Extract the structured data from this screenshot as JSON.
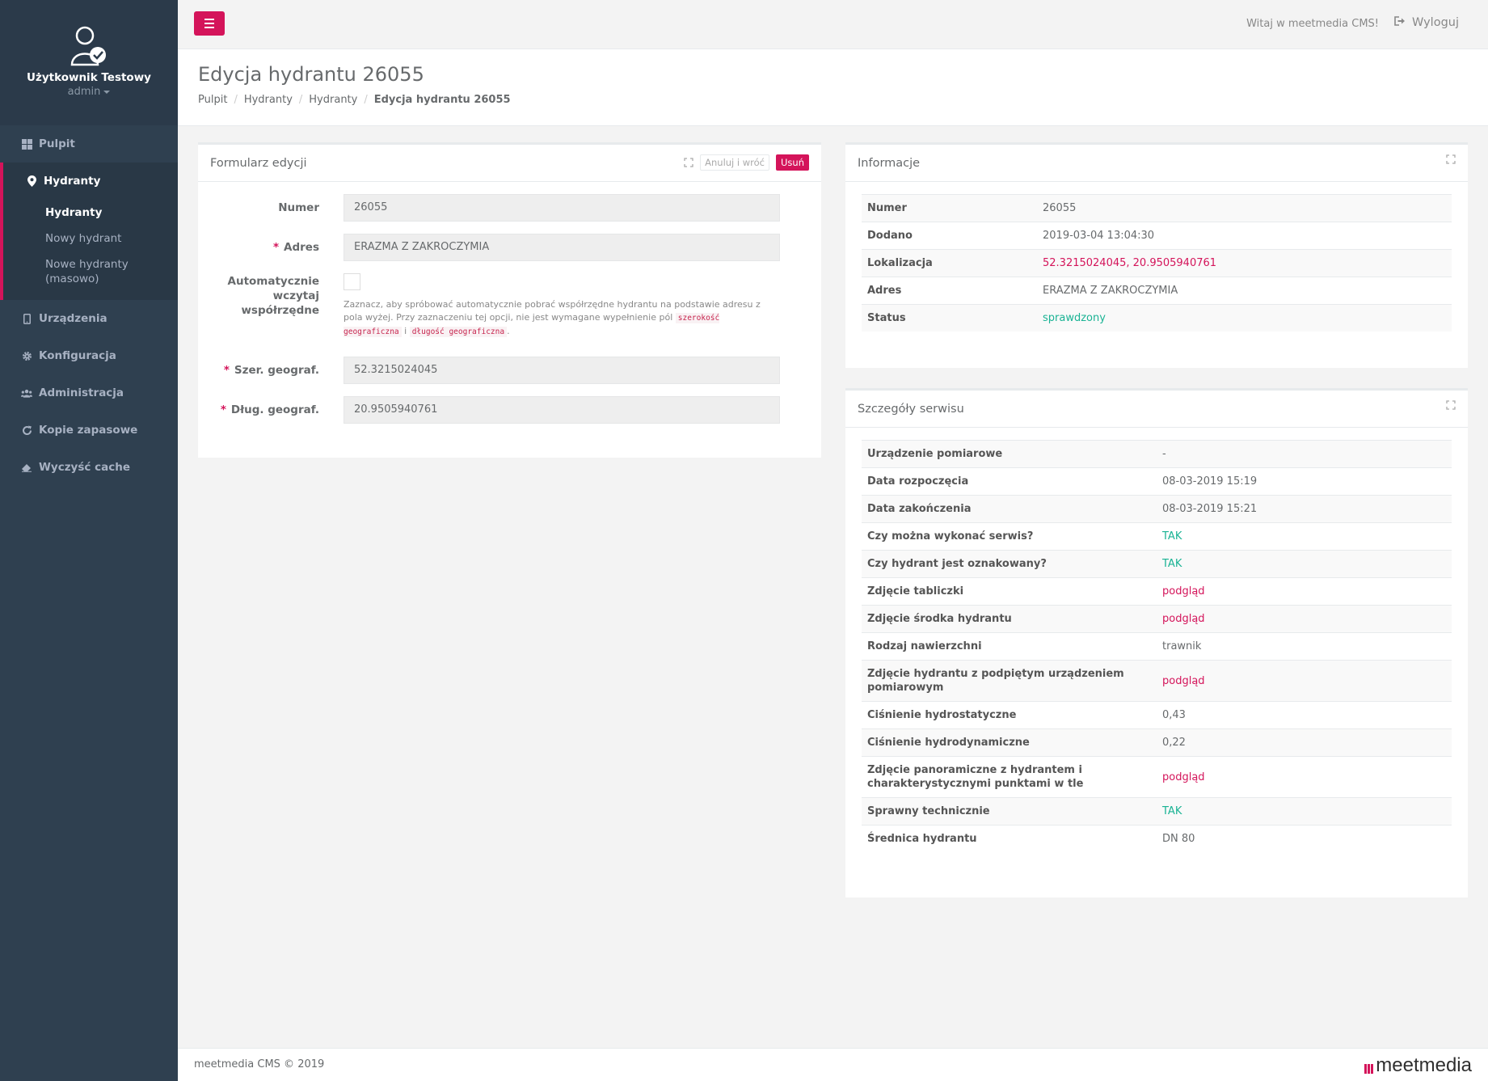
{
  "sidebar": {
    "user_name": "Użytkownik Testowy",
    "user_role": "admin",
    "items": [
      {
        "label": "Pulpit",
        "icon": "dashboard-icon"
      },
      {
        "label": "Hydranty",
        "icon": "map-marker-icon"
      },
      {
        "label": "Urządzenia",
        "icon": "mobile-icon"
      },
      {
        "label": "Konfiguracja",
        "icon": "gear-icon"
      },
      {
        "label": "Administracja",
        "icon": "users-icon"
      },
      {
        "label": "Kopie zapasowe",
        "icon": "refresh-icon"
      },
      {
        "label": "Wyczyść cache",
        "icon": "eraser-icon"
      }
    ],
    "sub_items": [
      "Hydranty",
      "Nowy hydrant",
      "Nowe hydranty (masowo)"
    ]
  },
  "topbar": {
    "welcome": "Witaj w meetmedia CMS!",
    "logout": "Wyloguj"
  },
  "heading": {
    "title": "Edycja hydrantu 26055",
    "breadcrumb": [
      "Pulpit",
      "Hydranty",
      "Hydranty",
      "Edycja hydrantu 26055"
    ]
  },
  "form": {
    "title": "Formularz edycji",
    "cancel_label": "Anuluj i wróć",
    "delete_label": "Usuń",
    "numer_label": "Numer",
    "numer_value": "26055",
    "adres_label": "Adres",
    "adres_value": "ERAZMA Z ZAKROCZYMIA",
    "auto_label": "Automatycznie wczytaj współrzędne",
    "help_1": "Zaznacz, aby spróbować automatycznie pobrać współrzędne hydrantu na podstawie adresu z pola wyżej. Przy zaznaczeniu tej opcji, nie jest wymagane wypełnienie pól",
    "help_code_1": "szerokość geograficzna",
    "help_and": "i",
    "help_code_2": "długość geograficzna",
    "help_end": ".",
    "szer_label": "Szer. geograf.",
    "szer_value": "52.3215024045",
    "dlug_label": "Dług. geograf.",
    "dlug_value": "20.9505940761"
  },
  "info": {
    "title": "Informacje",
    "rows": [
      {
        "key": "Numer",
        "value": "26055",
        "style": ""
      },
      {
        "key": "Dodano",
        "value": "2019-03-04 13:04:30",
        "style": ""
      },
      {
        "key": "Lokalizacja",
        "value": "52.3215024045, 20.9505940761",
        "style": "pink"
      },
      {
        "key": "Adres",
        "value": "ERAZMA Z ZAKROCZYMIA",
        "style": ""
      },
      {
        "key": "Status",
        "value": "sprawdzony",
        "style": "green"
      }
    ]
  },
  "service": {
    "title": "Szczegóły serwisu",
    "rows": [
      {
        "key": "Urządzenie pomiarowe",
        "value": "-",
        "style": ""
      },
      {
        "key": "Data rozpoczęcia",
        "value": "08-03-2019 15:19",
        "style": ""
      },
      {
        "key": "Data zakończenia",
        "value": "08-03-2019 15:21",
        "style": ""
      },
      {
        "key": "Czy można wykonać serwis?",
        "value": "TAK",
        "style": "green"
      },
      {
        "key": "Czy hydrant jest oznakowany?",
        "value": "TAK",
        "style": "green"
      },
      {
        "key": "Zdjęcie tabliczki",
        "value": "podgląd",
        "style": "pink"
      },
      {
        "key": "Zdjęcie środka hydrantu",
        "value": "podgląd",
        "style": "pink"
      },
      {
        "key": "Rodzaj nawierzchni",
        "value": "trawnik",
        "style": ""
      },
      {
        "key": "Zdjęcie hydrantu z podpiętym urządzeniem pomiarowym",
        "value": "podgląd",
        "style": "pink"
      },
      {
        "key": "Ciśnienie hydrostatyczne",
        "value": "0,43",
        "style": ""
      },
      {
        "key": "Ciśnienie hydrodynamiczne",
        "value": "0,22",
        "style": ""
      },
      {
        "key": "Zdjęcie panoramiczne z hydrantem i charakterystycznymi punktami w tle",
        "value": "podgląd",
        "style": "pink"
      },
      {
        "key": "Sprawny technicznie",
        "value": "TAK",
        "style": "green"
      },
      {
        "key": "Średnica hydrantu",
        "value": "DN 80",
        "style": ""
      }
    ]
  },
  "footer": {
    "copyright": "meetmedia CMS © 2019",
    "brand": "meetmedia"
  },
  "colors": {
    "accent": "#d4145a",
    "sidebar": "#2f4050",
    "success": "#1ab394"
  }
}
